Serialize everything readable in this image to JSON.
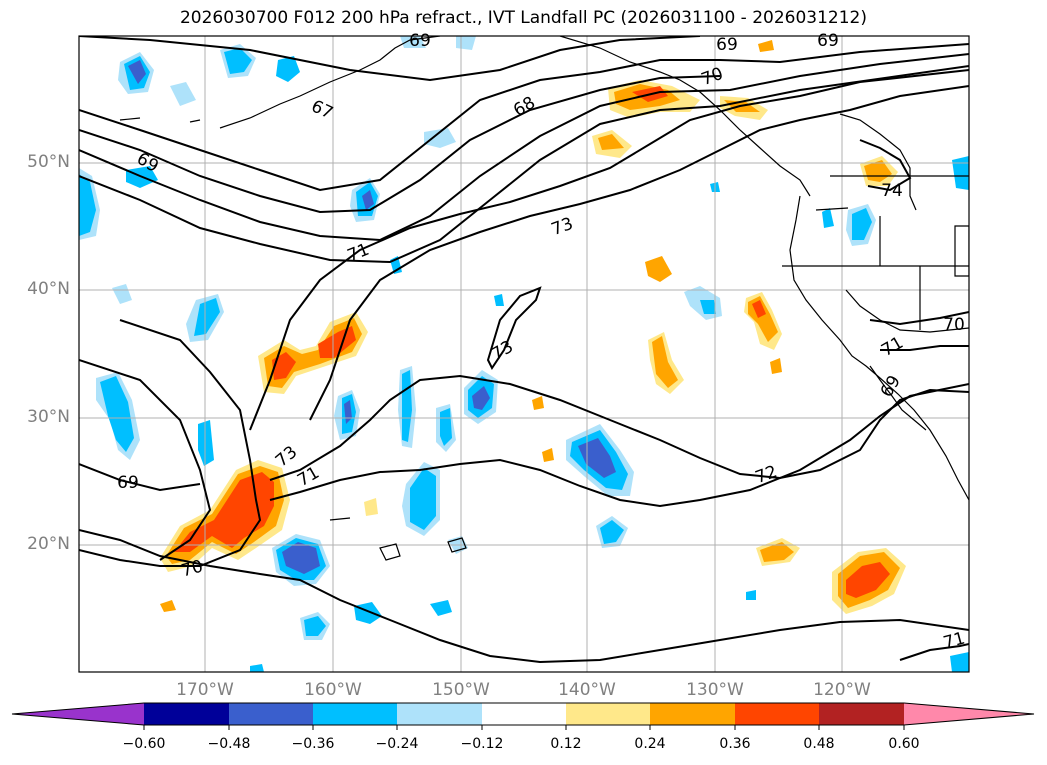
{
  "title": "2026030700 F012 200 hPa refract., IVT Landfall PC (2026031100 - 2026031212)",
  "latitude_labels": [
    "50°N",
    "40°N",
    "30°N",
    "20°N"
  ],
  "longitude_labels": [
    "170°W",
    "160°W",
    "150°W",
    "140°W",
    "130°W",
    "120°W"
  ],
  "contour_labels": [
    "69",
    "69",
    "69",
    "67",
    "69",
    "68",
    "70",
    "71",
    "73",
    "73",
    "73",
    "71",
    "69",
    "70",
    "72",
    "74",
    "70",
    "71",
    "69",
    "71"
  ],
  "colorbar": {
    "ticks": [
      "−0.60",
      "−0.48",
      "−0.36",
      "−0.24",
      "−0.12",
      "0.12",
      "0.24",
      "0.36",
      "0.48",
      "0.60"
    ],
    "colors": [
      "#9933cc",
      "#000099",
      "#3a5fcd",
      "#00bfff",
      "#aee2fa",
      "#ffffff",
      "#ffe88a",
      "#ffa500",
      "#ff4500",
      "#b22222",
      "#ff88aa"
    ]
  },
  "shading_colors": {
    "neg_light": "#aee2fa",
    "neg_mid": "#00bfff",
    "neg_strong": "#3a5fcd",
    "pos_light": "#ffe88a",
    "pos_mid": "#ffa500",
    "pos_strong": "#ff4500"
  }
}
